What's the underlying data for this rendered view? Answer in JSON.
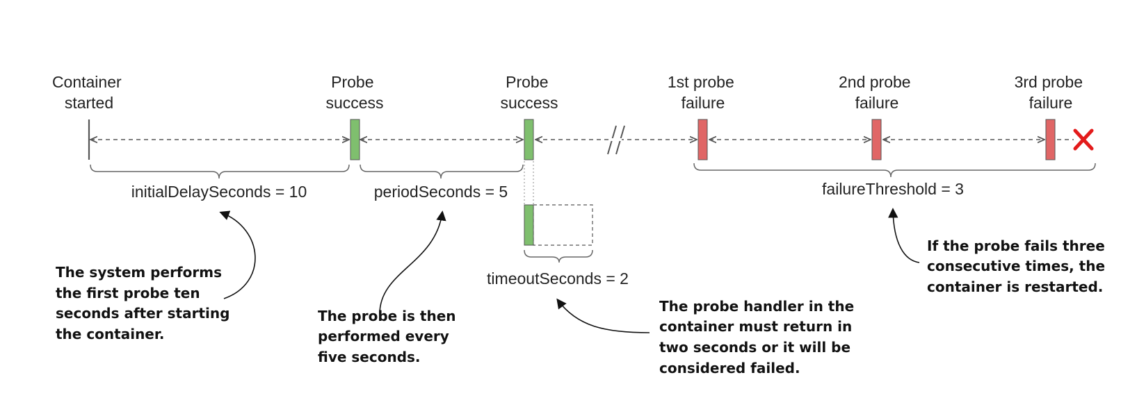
{
  "colors": {
    "success": "#7fbf6e",
    "failure": "#e06666",
    "restart_mark": "#e31b1b",
    "line": "#555555"
  },
  "timeline": {
    "events": [
      {
        "id": "container-started",
        "lines": [
          "Container",
          "started"
        ],
        "marker": "start"
      },
      {
        "id": "probe-success-1",
        "lines": [
          "Probe",
          "success"
        ],
        "marker": "success"
      },
      {
        "id": "probe-success-2",
        "lines": [
          "Probe",
          "success"
        ],
        "marker": "success"
      },
      {
        "id": "probe-failure-1",
        "lines": [
          "1st probe",
          "failure"
        ],
        "marker": "failure"
      },
      {
        "id": "probe-failure-2",
        "lines": [
          "2nd probe",
          "failure"
        ],
        "marker": "failure"
      },
      {
        "id": "probe-failure-3",
        "lines": [
          "3rd probe",
          "failure"
        ],
        "marker": "failure"
      }
    ],
    "restart_icon": "cross-icon",
    "gap_icon": "time-break-icon"
  },
  "params": {
    "initial_delay": "initialDelaySeconds = 10",
    "period": "periodSeconds = 5",
    "timeout": "timeoutSeconds = 2",
    "failure_threshold": "failureThreshold = 3"
  },
  "notes": {
    "initial_delay": [
      "The system performs",
      "the first probe ten",
      "seconds after starting",
      "the container."
    ],
    "period": [
      "The probe is then",
      "performed every",
      "five seconds."
    ],
    "timeout": [
      "The probe handler in the",
      "container must return in",
      "two seconds or it will be",
      "considered failed."
    ],
    "failure_threshold": [
      "If the probe fails three",
      "consecutive times, the",
      "container is restarted."
    ]
  }
}
